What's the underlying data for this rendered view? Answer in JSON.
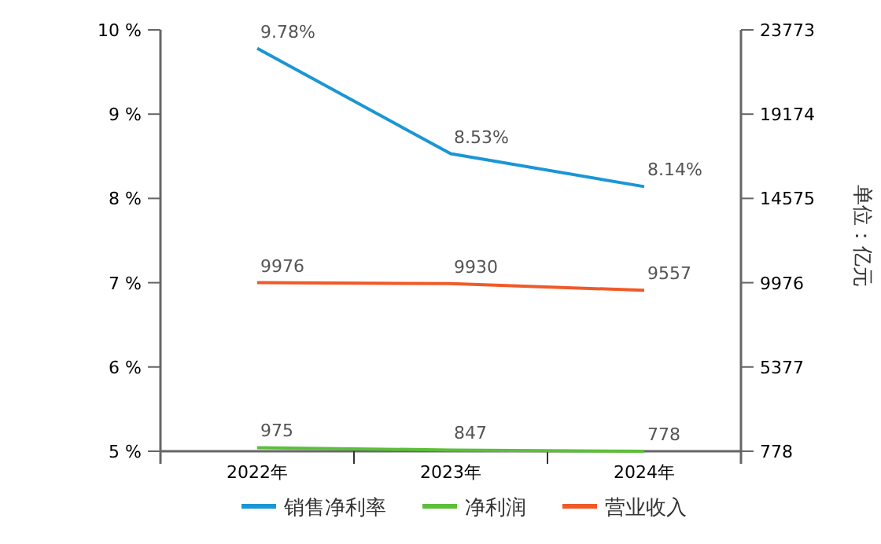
{
  "chart_data": {
    "type": "line",
    "categories": [
      "2022年",
      "2023年",
      "2024年"
    ],
    "y2label": "单位：亿元",
    "ylim": [
      5,
      10
    ],
    "yticks": [
      {
        "value": 5,
        "label": "5 %"
      },
      {
        "value": 6,
        "label": "6 %"
      },
      {
        "value": 7,
        "label": "7 %"
      },
      {
        "value": 8,
        "label": "8 %"
      },
      {
        "value": 9,
        "label": "9 %"
      },
      {
        "value": 10,
        "label": "10 %"
      }
    ],
    "y2lim": [
      778,
      23773
    ],
    "y2ticks": [
      778,
      5377,
      9976,
      14575,
      19174,
      23773
    ],
    "series": [
      {
        "name": "销售净利率",
        "color": "#1a96d4",
        "values": [
          9.78,
          8.53,
          8.14
        ],
        "value_labels": [
          "9.78%",
          "8.53%",
          "8.14%"
        ]
      },
      {
        "name": "净利润",
        "color": "#5cbf3a",
        "axis": "y2",
        "values": [
          975,
          847,
          778
        ],
        "value_labels": [
          "975",
          "847",
          "778"
        ]
      },
      {
        "name": "营业收入",
        "color": "#f05a28",
        "axis": "y2",
        "values": [
          9976,
          9930,
          9557
        ],
        "value_labels": [
          "9976",
          "9930",
          "9557"
        ]
      }
    ],
    "legend": "bottom",
    "grid": false,
    "marker": "none"
  }
}
